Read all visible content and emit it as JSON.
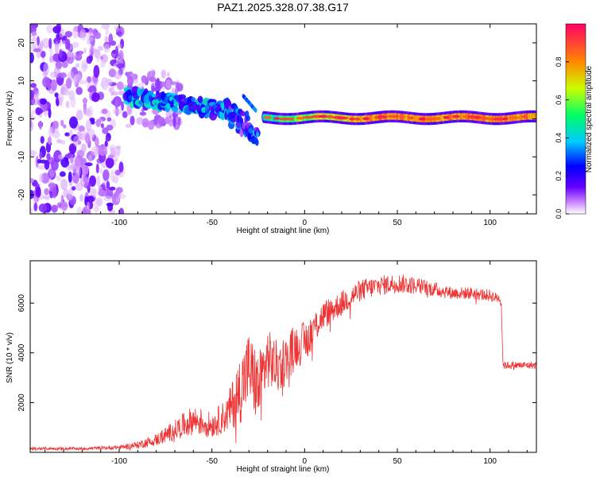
{
  "title": "PAZ1.2025.328.07.38.G17",
  "colors": {
    "snr_line": "#ee3333",
    "axis": "#000000",
    "background": "#ffffff"
  },
  "chart_data": [
    {
      "type": "heatmap",
      "title": "PAZ1.2025.328.07.38.G17",
      "xlabel": "Height of straight line (km)",
      "ylabel": "Frequency (Hz)",
      "xlim": [
        -148,
        125
      ],
      "ylim": [
        -25,
        25
      ],
      "xticks": [
        -100,
        -50,
        0,
        50,
        100
      ],
      "yticks": [
        20,
        10,
        0,
        -10,
        -20
      ],
      "colorbar": {
        "label": "Normalized spectral amplitude",
        "range": [
          0,
          1
        ],
        "ticks": [
          0.0,
          0.2,
          0.4,
          0.6,
          0.8
        ],
        "colormap": [
          "#ffffff",
          "#cc88ff",
          "#6600ff",
          "#0000ff",
          "#00ccff",
          "#00ff66",
          "#ccff00",
          "#ff8800",
          "#ff0066"
        ]
      },
      "features": [
        {
          "height_range": [
            -148,
            -95
          ],
          "frequency_range": [
            -25,
            25
          ],
          "amplitude": 0.1,
          "description": "scattered noise"
        },
        {
          "height_range": [
            -95,
            -70
          ],
          "frequency_range": [
            -3,
            12
          ],
          "amplitude": 0.15,
          "description": "weak diffuse energy"
        },
        {
          "height_range": [
            -97,
            -40
          ],
          "frequency_trend": [
            6,
            2
          ],
          "amplitude": 0.3,
          "description": "descending tone"
        },
        {
          "height_range": [
            -40,
            -25
          ],
          "frequency_trend": [
            2,
            -4
          ],
          "amplitude": 0.2,
          "description": "dispersed tone"
        },
        {
          "height_range": [
            -22,
            125
          ],
          "frequency": 0.5,
          "amplitude": 0.6,
          "description": "stable carrier"
        }
      ]
    },
    {
      "type": "line",
      "title": "",
      "xlabel": "Height of straight line (km)",
      "ylabel": "SNR (10 * v/v)",
      "xlim": [
        -148,
        125
      ],
      "ylim": [
        0,
        7700
      ],
      "xticks": [
        -100,
        -50,
        0,
        50,
        100
      ],
      "yticks": [
        2000,
        4000,
        6000
      ],
      "series": [
        {
          "name": "SNR",
          "x": [
            -148,
            -120,
            -100,
            -90,
            -80,
            -70,
            -60,
            -50,
            -42,
            -35,
            -30,
            -25,
            -20,
            -15,
            -10,
            -5,
            0,
            5,
            10,
            20,
            30,
            40,
            50,
            60,
            70,
            80,
            90,
            100,
            104,
            106,
            107,
            110,
            125
          ],
          "values": [
            150,
            150,
            200,
            300,
            500,
            900,
            1300,
            1100,
            1500,
            2500,
            3400,
            2500,
            3800,
            3400,
            3700,
            4300,
            4400,
            5000,
            5500,
            6000,
            6500,
            6700,
            6800,
            6700,
            6550,
            6400,
            6400,
            6300,
            6200,
            6200,
            3500,
            3500,
            3500
          ],
          "noise_amplitude": [
            60,
            60,
            80,
            150,
            250,
            400,
            600,
            500,
            700,
            1400,
            1500,
            1500,
            1200,
            1100,
            1000,
            900,
            850,
            700,
            600,
            500,
            450,
            400,
            400,
            350,
            300,
            250,
            250,
            250,
            200,
            200,
            150,
            150,
            150
          ]
        }
      ]
    }
  ]
}
